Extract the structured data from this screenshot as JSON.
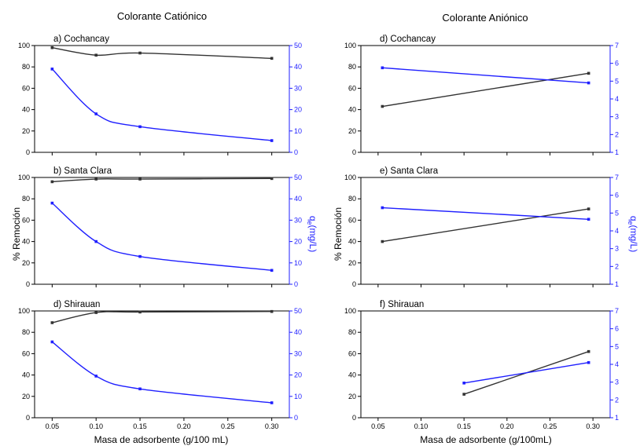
{
  "colors": {
    "left_axis": "#000000",
    "right_axis": "#1f1fff",
    "series_left": "#333333",
    "series_right": "#1f1fff"
  },
  "column_titles": [
    "Colorante Catiónico",
    "Colorante Aniónico"
  ],
  "axis_labels": {
    "left_ylabel": "% Remoción",
    "right_ylabel_main": "q",
    "right_ylabel_sub": "e",
    "right_ylabel_rest": "(mg/L)",
    "xlabel_left": "Masa de adsorbente (g/100 mL)",
    "xlabel_right": "Masa de adsorbente (g/100mL)"
  },
  "chart_data": [
    {
      "type": "line",
      "title": "a) Cochancay",
      "x": [
        0.05,
        0.1,
        0.15,
        0.3
      ],
      "xlim": [
        0.03,
        0.32
      ],
      "xticks": [
        "0.05",
        "0.10",
        "0.15",
        "0.20",
        "0.25",
        "0.30"
      ],
      "ylim_left": [
        0,
        100
      ],
      "yticks_left": [
        "0",
        "20",
        "40",
        "60",
        "80",
        "100"
      ],
      "ylim_right": [
        0,
        50
      ],
      "yticks_right": [
        "0",
        "10",
        "20",
        "30",
        "40",
        "50"
      ],
      "series": [
        {
          "axis": "left",
          "values": [
            98,
            91,
            93,
            88
          ]
        },
        {
          "axis": "right",
          "values": [
            39,
            18,
            12,
            5.5
          ]
        }
      ]
    },
    {
      "type": "line",
      "title": "b) Santa Clara",
      "x": [
        0.05,
        0.1,
        0.15,
        0.3
      ],
      "xlim": [
        0.03,
        0.32
      ],
      "xticks": [
        "0.05",
        "0.10",
        "0.15",
        "0.20",
        "0.25",
        "0.30"
      ],
      "ylim_left": [
        0,
        100
      ],
      "yticks_left": [
        "0",
        "20",
        "40",
        "60",
        "80",
        "100"
      ],
      "ylim_right": [
        0,
        50
      ],
      "yticks_right": [
        "0",
        "10",
        "20",
        "30",
        "40",
        "50"
      ],
      "series": [
        {
          "axis": "left",
          "values": [
            96,
            98.5,
            98.5,
            99
          ]
        },
        {
          "axis": "right",
          "values": [
            38,
            20,
            13,
            6.5
          ]
        }
      ]
    },
    {
      "type": "line",
      "title": "d) Shirauan",
      "x": [
        0.05,
        0.1,
        0.15,
        0.3
      ],
      "xlim": [
        0.03,
        0.32
      ],
      "xticks": [
        "0.05",
        "0.10",
        "0.15",
        "0.20",
        "0.25",
        "0.30"
      ],
      "ylim_left": [
        0,
        100
      ],
      "yticks_left": [
        "0",
        "20",
        "40",
        "60",
        "80",
        "100"
      ],
      "ylim_right": [
        0,
        50
      ],
      "yticks_right": [
        "0",
        "10",
        "20",
        "30",
        "40",
        "50"
      ],
      "series": [
        {
          "axis": "left",
          "values": [
            89,
            98.5,
            99,
            99.5
          ]
        },
        {
          "axis": "right",
          "values": [
            35.5,
            19.5,
            13.5,
            7
          ]
        }
      ]
    },
    {
      "type": "line",
      "title": "d) Cochancay",
      "x": [
        0.055,
        0.295
      ],
      "xlim": [
        0.03,
        0.32
      ],
      "xticks": [
        "0.05",
        "0.10",
        "0.15",
        "0.20",
        "0.25",
        "0.30"
      ],
      "ylim_left": [
        0,
        100
      ],
      "yticks_left": [
        "0",
        "20",
        "40",
        "60",
        "80",
        "100"
      ],
      "ylim_right": [
        1,
        7
      ],
      "yticks_right": [
        "1",
        "2",
        "3",
        "4",
        "5",
        "6",
        "7"
      ],
      "series": [
        {
          "axis": "left",
          "values": [
            43,
            74
          ]
        },
        {
          "axis": "right",
          "values": [
            5.75,
            4.9
          ]
        }
      ]
    },
    {
      "type": "line",
      "title": "e) Santa Clara",
      "x": [
        0.055,
        0.295
      ],
      "xlim": [
        0.03,
        0.32
      ],
      "xticks": [
        "0.05",
        "0.10",
        "0.15",
        "0.20",
        "0.25",
        "0.30"
      ],
      "ylim_left": [
        0,
        100
      ],
      "yticks_left": [
        "0",
        "20",
        "40",
        "60",
        "80",
        "100"
      ],
      "ylim_right": [
        1,
        7
      ],
      "yticks_right": [
        "1",
        "2",
        "3",
        "4",
        "5",
        "6",
        "7"
      ],
      "series": [
        {
          "axis": "left",
          "values": [
            40,
            70.5
          ]
        },
        {
          "axis": "right",
          "values": [
            5.3,
            4.65
          ]
        }
      ]
    },
    {
      "type": "line",
      "title": "f) Shirauan",
      "x": [
        0.15,
        0.295
      ],
      "xlim": [
        0.03,
        0.32
      ],
      "xticks": [
        "0.05",
        "0.10",
        "0.15",
        "0.20",
        "0.25",
        "0.30"
      ],
      "ylim_left": [
        0,
        100
      ],
      "yticks_left": [
        "0",
        "20",
        "40",
        "60",
        "80",
        "100"
      ],
      "ylim_right": [
        1,
        7
      ],
      "yticks_right": [
        "1",
        "2",
        "3",
        "4",
        "5",
        "6",
        "7"
      ],
      "series": [
        {
          "axis": "left",
          "values": [
            22,
            62
          ]
        },
        {
          "axis": "right",
          "values": [
            2.95,
            4.1
          ]
        }
      ]
    }
  ]
}
